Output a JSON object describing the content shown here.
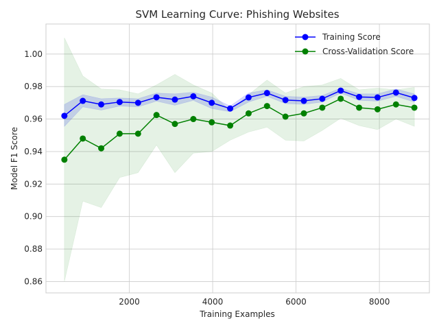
{
  "chart_data": {
    "type": "line",
    "title": "SVM Learning Curve: Phishing Websites",
    "xlabel": "Training Examples",
    "ylabel": "Model F1 Score",
    "xlim": [
      0,
      9200
    ],
    "ylim": [
      0.853,
      1.0185
    ],
    "x_ticks": [
      2000,
      4000,
      6000,
      8000
    ],
    "x_tick_labels": [
      "2000",
      "4000",
      "6000",
      "8000"
    ],
    "y_ticks": [
      0.86,
      0.88,
      0.9,
      0.92,
      0.94,
      0.96,
      0.98,
      1.0
    ],
    "y_tick_labels": [
      "0.86",
      "0.88",
      "0.90",
      "0.92",
      "0.94",
      "0.96",
      "0.98",
      "1.00"
    ],
    "grid": true,
    "legend_position": "top-right",
    "x": [
      442,
      884,
      1326,
      1768,
      2210,
      2652,
      3094,
      3536,
      3978,
      4420,
      4862,
      5304,
      5746,
      6188,
      6630,
      7072,
      7514,
      7956,
      8398,
      8840
    ],
    "series": [
      {
        "name": "Training Score",
        "color": "#0000ff",
        "band_color": "#0000ff",
        "values": [
          0.962,
          0.9712,
          0.969,
          0.9705,
          0.97,
          0.9734,
          0.972,
          0.974,
          0.97,
          0.9665,
          0.9733,
          0.976,
          0.9717,
          0.9712,
          0.9725,
          0.9775,
          0.9736,
          0.9733,
          0.9763,
          0.973
        ],
        "upper": [
          0.969,
          0.975,
          0.9725,
          0.973,
          0.9725,
          0.976,
          0.9755,
          0.9765,
          0.9735,
          0.968,
          0.976,
          0.978,
          0.974,
          0.9735,
          0.9745,
          0.979,
          0.9755,
          0.9755,
          0.9785,
          0.9755
        ],
        "lower": [
          0.9555,
          0.9675,
          0.9655,
          0.968,
          0.9675,
          0.971,
          0.9685,
          0.9715,
          0.9665,
          0.9645,
          0.9705,
          0.974,
          0.9695,
          0.969,
          0.9705,
          0.976,
          0.9715,
          0.971,
          0.974,
          0.9705
        ]
      },
      {
        "name": "Cross-Validation Score",
        "color": "#008000",
        "band_color": "#008000",
        "values": [
          0.935,
          0.948,
          0.942,
          0.951,
          0.951,
          0.9625,
          0.957,
          0.96,
          0.958,
          0.956,
          0.9635,
          0.968,
          0.9615,
          0.9635,
          0.967,
          0.9725,
          0.967,
          0.966,
          0.969,
          0.967
        ],
        "upper": [
          1.01,
          0.9865,
          0.9785,
          0.978,
          0.9755,
          0.981,
          0.9875,
          0.981,
          0.976,
          0.965,
          0.975,
          0.984,
          0.976,
          0.98,
          0.981,
          0.985,
          0.978,
          0.979,
          0.978,
          0.9795
        ],
        "lower": [
          0.86,
          0.9095,
          0.9055,
          0.924,
          0.927,
          0.944,
          0.927,
          0.939,
          0.94,
          0.947,
          0.952,
          0.955,
          0.947,
          0.9465,
          0.953,
          0.9605,
          0.956,
          0.9535,
          0.96,
          0.9555
        ]
      }
    ]
  }
}
